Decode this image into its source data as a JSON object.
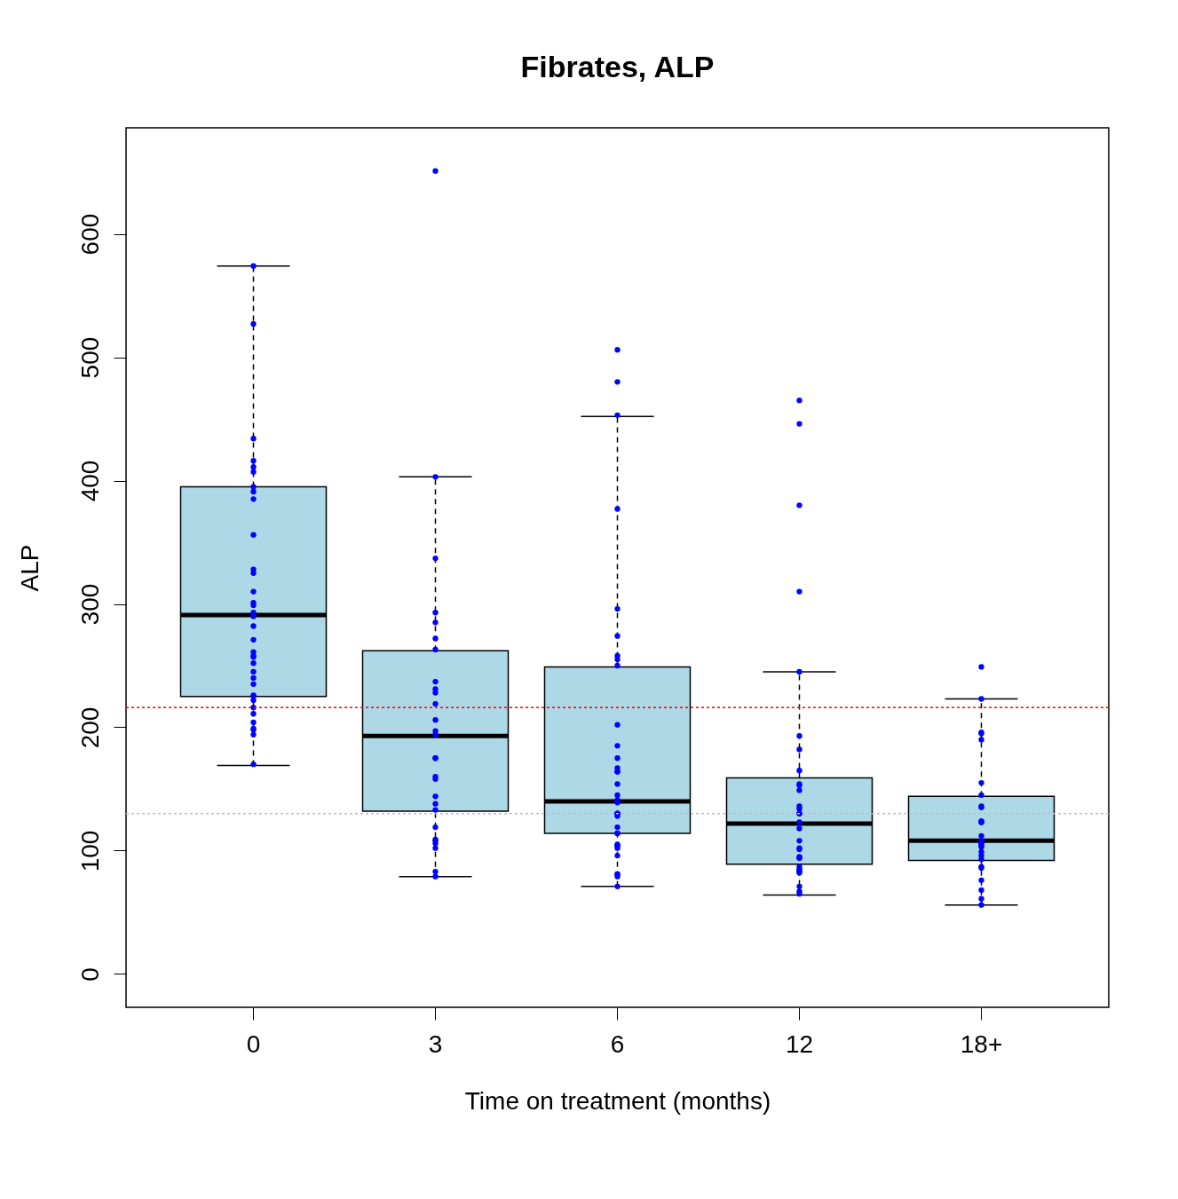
{
  "chart_data": {
    "type": "box",
    "title": "Fibrates, ALP",
    "xlabel": "Time on treatment (months)",
    "ylabel": "ALP",
    "categories": [
      "0",
      "3",
      "6",
      "12",
      "18+"
    ],
    "ylim": [
      -27,
      686
    ],
    "yticks": [
      0,
      100,
      200,
      300,
      400,
      500,
      600
    ],
    "grid": false,
    "series": [
      {
        "type": "box",
        "color": "#add8e6",
        "boxes": [
          {
            "low": 169,
            "q1": 225,
            "median": 291,
            "q3": 395,
            "high": 574
          },
          {
            "low": 79,
            "q1": 132,
            "median": 193,
            "q3": 262,
            "high": 403
          },
          {
            "low": 71,
            "q1": 114,
            "median": 140,
            "q3": 249,
            "high": 452
          },
          {
            "low": 64,
            "q1": 89,
            "median": 122,
            "q3": 159,
            "high": 245
          },
          {
            "low": 56,
            "q1": 92,
            "median": 108,
            "q3": 144,
            "high": 223
          }
        ]
      },
      {
        "type": "scatter",
        "color": "#0000ff",
        "marker": "circle",
        "x": [
          "0",
          "0",
          "0",
          "0",
          "0",
          "0",
          "0",
          "0",
          "0",
          "0",
          "0",
          "0",
          "0",
          "0",
          "0",
          "0",
          "0",
          "0",
          "0",
          "0",
          "0",
          "0",
          "0",
          "0",
          "0",
          "0",
          "0",
          "0",
          "0",
          "0",
          "0",
          "0",
          "0",
          "0",
          "0",
          "0",
          "3",
          "3",
          "3",
          "3",
          "3",
          "3",
          "3",
          "3",
          "3",
          "3",
          "3",
          "3",
          "3",
          "3",
          "3",
          "3",
          "3",
          "3",
          "3",
          "3",
          "3",
          "3",
          "3",
          "3",
          "3",
          "3",
          "3",
          "3",
          "6",
          "6",
          "6",
          "6",
          "6",
          "6",
          "6",
          "6",
          "6",
          "6",
          "6",
          "6",
          "6",
          "6",
          "6",
          "6",
          "6",
          "6",
          "6",
          "6",
          "6",
          "6",
          "6",
          "6",
          "6",
          "6",
          "6",
          "6",
          "6",
          "6",
          "6",
          "6",
          "6",
          "6",
          "6",
          "12",
          "12",
          "12",
          "12",
          "12",
          "12",
          "12",
          "12",
          "12",
          "12",
          "12",
          "12",
          "12",
          "12",
          "12",
          "12",
          "12",
          "12",
          "12",
          "12",
          "12",
          "12",
          "12",
          "12",
          "12",
          "12",
          "12",
          "12",
          "12",
          "12",
          "12",
          "18+",
          "18+",
          "18+",
          "18+",
          "18+",
          "18+",
          "18+",
          "18+",
          "18+",
          "18+",
          "18+",
          "18+",
          "18+",
          "18+",
          "18+",
          "18+",
          "18+",
          "18+",
          "18+",
          "18+",
          "18+",
          "18+",
          "18+",
          "18+",
          "18+",
          "18+",
          "18+",
          "18+"
        ],
        "values": [
          574,
          527,
          434,
          416,
          411,
          407,
          395,
          391,
          385,
          356,
          328,
          325,
          310,
          301,
          299,
          293,
          290,
          282,
          271,
          261,
          258,
          257,
          252,
          245,
          240,
          235,
          226,
          225,
          222,
          216,
          211,
          204,
          199,
          198,
          194,
          170,
          651,
          403,
          337,
          293,
          285,
          272,
          263,
          237,
          231,
          228,
          219,
          206,
          197,
          194,
          175,
          175,
          160,
          158,
          144,
          138,
          133,
          119,
          109,
          108,
          106,
          102,
          83,
          79,
          506,
          480,
          453,
          377,
          296,
          274,
          258,
          255,
          250,
          202,
          185,
          175,
          167,
          164,
          164,
          154,
          145,
          141,
          139,
          130,
          130,
          130,
          128,
          119,
          114,
          114,
          105,
          104,
          104,
          102,
          96,
          81,
          79,
          81,
          71,
          465,
          446,
          380,
          310,
          245,
          193,
          182,
          165,
          154,
          153,
          149,
          136,
          134,
          130,
          130,
          123,
          118,
          108,
          102,
          101,
          95,
          94,
          94,
          87,
          85,
          84,
          83,
          82,
          71,
          67,
          65,
          249,
          223,
          196,
          195,
          190,
          155,
          145,
          136,
          135,
          123,
          123,
          124,
          112,
          107,
          106,
          105,
          104,
          103,
          108,
          99,
          96,
          93,
          87,
          86,
          76,
          68,
          61,
          56
        ]
      }
    ],
    "ref_lines": [
      {
        "axis": "y",
        "value": 216,
        "color": "#ff0000",
        "line_style": "dotted"
      },
      {
        "axis": "y",
        "value": 130,
        "color": "#bebebe",
        "line_style": "dotted"
      }
    ]
  }
}
